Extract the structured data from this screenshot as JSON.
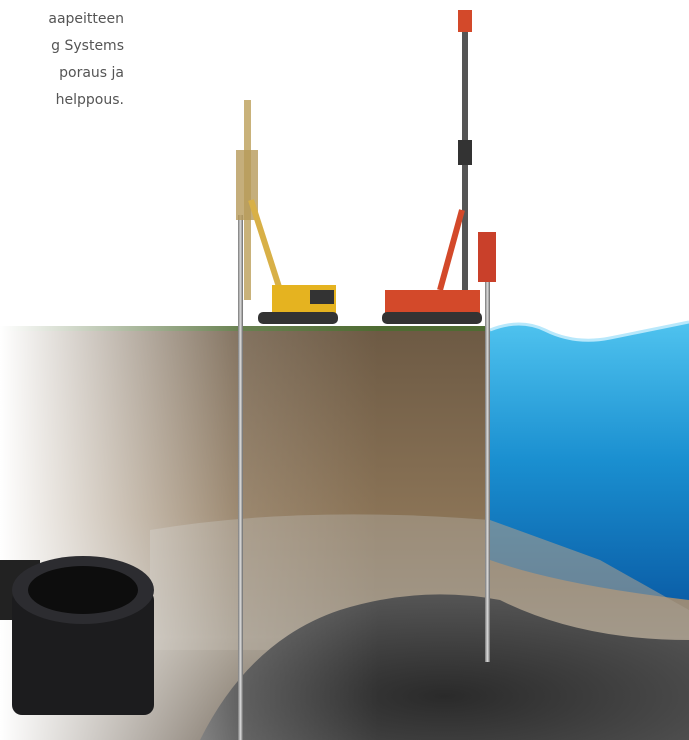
{
  "text_lines": [
    "aapeitteen",
    "g Systems",
    "poraus ja",
    "helppous."
  ]
}
